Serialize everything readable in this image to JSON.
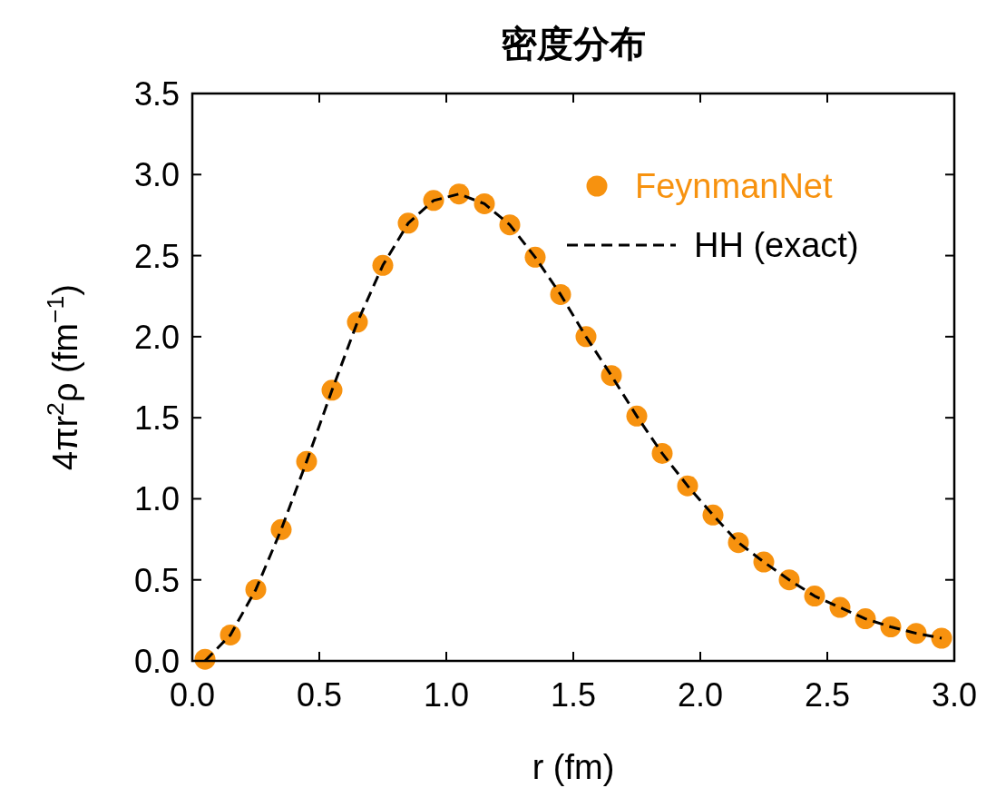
{
  "chart_data": {
    "type": "scatter",
    "title": "密度分布",
    "xlabel": "r (fm)",
    "ylabel": "4πr$^{2}$ρ (fm$^{−1}$)",
    "xlim": [
      0,
      3
    ],
    "ylim": [
      0,
      3.5
    ],
    "xticks": [
      {
        "value": 0,
        "label": "0.0"
      },
      0.5,
      {
        "value": 1,
        "label": "1.0"
      },
      1.5,
      {
        "value": 2,
        "label": "2.0"
      },
      2.5,
      {
        "value": 3,
        "label": "3.0"
      }
    ],
    "yticks": [
      {
        "value": 0,
        "label": "0.0"
      },
      0.5,
      {
        "value": 1,
        "label": "1.0"
      },
      1.5,
      {
        "value": 2,
        "label": "2.0"
      },
      2.5,
      {
        "value": 3,
        "label": "3.0"
      },
      3.5
    ],
    "legend": "top right",
    "grid": false,
    "series": [
      {
        "name": "FeynmanNet",
        "marker": "circle",
        "color": "#f7920f",
        "x": [
          0.05,
          0.15,
          0.25,
          0.35,
          0.45,
          0.55,
          0.65,
          0.75,
          0.85,
          0.95,
          1.05,
          1.15,
          1.25,
          1.35,
          1.45,
          1.55,
          1.65,
          1.75,
          1.85,
          1.95,
          2.05,
          2.15,
          2.25,
          2.35,
          2.45,
          2.55,
          2.65,
          2.75,
          2.85,
          2.95
        ],
        "values": [
          0.01,
          0.16,
          0.44,
          0.81,
          1.23,
          1.67,
          2.09,
          2.44,
          2.7,
          2.84,
          2.88,
          2.82,
          2.69,
          2.49,
          2.26,
          2.0,
          1.76,
          1.51,
          1.28,
          1.08,
          0.9,
          0.73,
          0.61,
          0.5,
          0.4,
          0.33,
          0.26,
          0.21,
          0.17,
          0.14
        ]
      },
      {
        "name": "HH (exact)",
        "type": "line",
        "line_style": "dashed",
        "color": "#000000",
        "x": [
          0.05,
          0.15,
          0.25,
          0.35,
          0.45,
          0.55,
          0.65,
          0.75,
          0.85,
          0.95,
          1.05,
          1.15,
          1.25,
          1.35,
          1.45,
          1.55,
          1.65,
          1.75,
          1.85,
          1.95,
          2.05,
          2.15,
          2.25,
          2.35,
          2.45,
          2.55,
          2.65,
          2.75,
          2.85,
          2.95
        ],
        "values": [
          0.0,
          0.16,
          0.44,
          0.81,
          1.23,
          1.67,
          2.09,
          2.44,
          2.7,
          2.84,
          2.88,
          2.82,
          2.69,
          2.49,
          2.26,
          2.0,
          1.76,
          1.51,
          1.28,
          1.08,
          0.9,
          0.73,
          0.61,
          0.5,
          0.4,
          0.33,
          0.26,
          0.21,
          0.17,
          0.14
        ]
      }
    ]
  }
}
